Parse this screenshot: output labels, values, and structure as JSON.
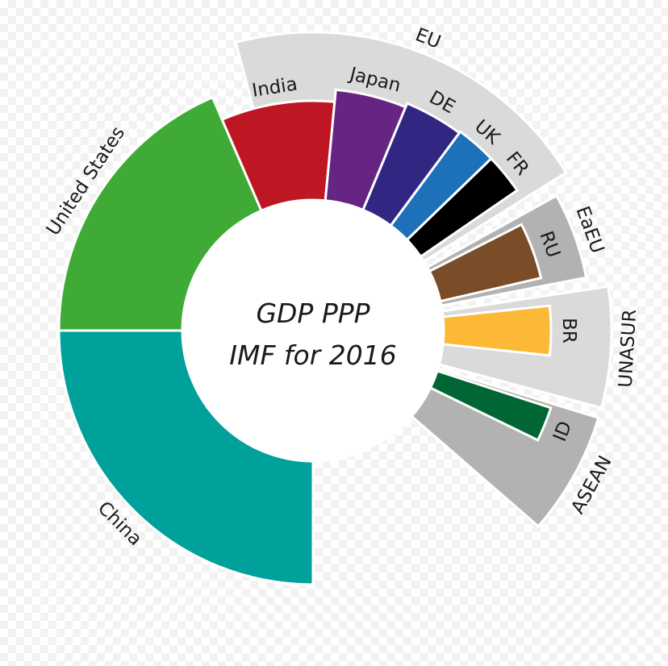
{
  "chart_data": {
    "type": "radial-bar",
    "title_lines": [
      "GDP PPP",
      "IMF for 2016"
    ],
    "note": "",
    "segments": [
      {
        "label": "China",
        "value": 21.3,
        "color": "#00a19a",
        "start": 180,
        "end": 270,
        "level": "outer"
      },
      {
        "label": "United States",
        "value": 18.6,
        "color": "#3fab36",
        "start": 270,
        "end": 336.7,
        "level": "outer"
      },
      {
        "label": "India",
        "value": 8.7,
        "color": "#be1622",
        "start": 336.7,
        "end": 365.4,
        "level": "outer"
      },
      {
        "label": "Japan",
        "value": 4.9,
        "color": "#662483",
        "start": 365.4,
        "end": 382.5,
        "level": "outer"
      },
      {
        "label": "DE",
        "value": 3.9,
        "color": "#312782",
        "start": 382.5,
        "end": 396.5,
        "level": "outer"
      },
      {
        "label": "UK",
        "value": 2.8,
        "color": "#1d71b8",
        "start": 396.5,
        "end": 406.0,
        "level": "outer"
      },
      {
        "label": "FR",
        "value": 2.7,
        "color": "#000000",
        "start": 406.0,
        "end": 415.5,
        "level": "outer"
      },
      {
        "label": "EU",
        "value": 20.0,
        "color": "#dadada",
        "start": 345,
        "end": 418,
        "level": "group"
      },
      {
        "label": "EaEU",
        "value": 4.5,
        "color": "#b2b2b2",
        "start": 421,
        "end": 439,
        "level": "group"
      },
      {
        "label": "RU",
        "value": 3.8,
        "color": "#7a4c27",
        "start": 423,
        "end": 437,
        "level": "inner"
      },
      {
        "label": "UNASUR",
        "value": 6.5,
        "color": "#dadada",
        "start": 441.5,
        "end": 465,
        "level": "group"
      },
      {
        "label": "BR",
        "value": 3.1,
        "color": "#fbb935",
        "start": 444,
        "end": 456,
        "level": "inner"
      },
      {
        "label": "ASEAN",
        "value": 7.0,
        "color": "#b2b2b2",
        "start": 467,
        "end": 491,
        "level": "group"
      },
      {
        "label": "ID",
        "value": 3.0,
        "color": "#006633",
        "start": 468,
        "end": 476,
        "level": "inner"
      }
    ]
  }
}
